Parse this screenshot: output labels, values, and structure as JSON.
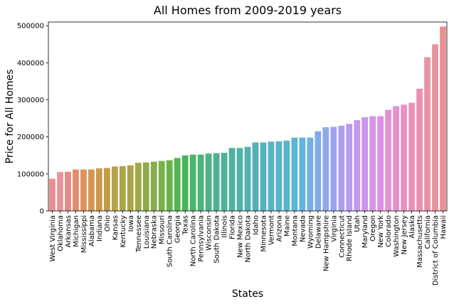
{
  "chart_data": {
    "type": "bar",
    "title": "All Homes from 2009-2019 years",
    "xlabel": "States",
    "ylabel": "Price for All Homes",
    "ylim": [
      0,
      510000
    ],
    "yticks": [
      0,
      100000,
      200000,
      300000,
      400000,
      500000
    ],
    "grid": false,
    "legend": "none",
    "categories": [
      "West Virginia",
      "Oklahoma",
      "Arkansas",
      "Michigan",
      "Mississippi",
      "Alabama",
      "Indiana",
      "Ohio",
      "Kansas",
      "Kentucky",
      "Iowa",
      "Tennessee",
      "Louisiana",
      "Nebraska",
      "Missouri",
      "South Carolina",
      "Georgia",
      "Texas",
      "North Carolina",
      "Pennsylvania",
      "Wisconsin",
      "South Dakota",
      "Illinois",
      "Florida",
      "New Mexico",
      "North Dakota",
      "Idaho",
      "Minnesota",
      "Vermont",
      "Arizona",
      "Maine",
      "Montana",
      "Nevada",
      "Wyoming",
      "Delaware",
      "New Hampshire",
      "Virginia",
      "Connecticut",
      "Rhode Island",
      "Utah",
      "Maryland",
      "Oregon",
      "New York",
      "Colorado",
      "Washington",
      "New Jersey",
      "Alaska",
      "Massachusetts",
      "California",
      "District of Columbia",
      "Hawaii"
    ],
    "values": [
      87000,
      105000,
      106000,
      112000,
      112000,
      112000,
      115000,
      116000,
      120000,
      121000,
      123000,
      130000,
      131000,
      133000,
      135000,
      137000,
      143000,
      150000,
      152000,
      152000,
      155000,
      156000,
      157000,
      170000,
      170000,
      173000,
      185000,
      185000,
      187000,
      188000,
      190000,
      198000,
      198000,
      198000,
      215000,
      226000,
      227000,
      230000,
      235000,
      245000,
      253000,
      256000,
      256000,
      273000,
      283000,
      287000,
      292000,
      330000,
      415000,
      450000,
      498000
    ],
    "colors": [
      "#ea8e92",
      "#e9939b",
      "#e28c86",
      "#e18d6f",
      "#df925d",
      "#d7944f",
      "#cc994b",
      "#c29d47",
      "#b9a148",
      "#b0a248",
      "#a6a548",
      "#9ca949",
      "#92ab4a",
      "#86ae4a",
      "#78b14b",
      "#66b34c",
      "#52b54f",
      "#4bb45a",
      "#4bb56b",
      "#4cb479",
      "#4db385",
      "#4db28f",
      "#4eb298",
      "#4fb1a1",
      "#50b2a8",
      "#51b1af",
      "#53b1b6",
      "#54b2bd",
      "#56b3c4",
      "#58b4cb",
      "#5ab4d1",
      "#5db5d9",
      "#62b4e0",
      "#70b0e6",
      "#80abe9",
      "#90a7eb",
      "#9da2ed",
      "#aa9fee",
      "#b69ced",
      "#c299ec",
      "#cc96ea",
      "#d594e8",
      "#de92e4",
      "#e391d9",
      "#e790ce",
      "#e991c3",
      "#ea92b8",
      "#ea93ae",
      "#e991a5",
      "#e8929d",
      "#e99397"
    ]
  }
}
